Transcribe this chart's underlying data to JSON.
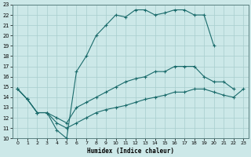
{
  "xlabel": "Humidex (Indice chaleur)",
  "bg_color": "#cce8e8",
  "grid_color": "#a8cece",
  "line_color": "#1a6b6b",
  "xlim": [
    -0.5,
    23.5
  ],
  "ylim": [
    10,
    23
  ],
  "xticks": [
    0,
    1,
    2,
    3,
    4,
    5,
    6,
    7,
    8,
    9,
    10,
    11,
    12,
    13,
    14,
    15,
    16,
    17,
    18,
    19,
    20,
    21,
    22,
    23
  ],
  "yticks": [
    10,
    11,
    12,
    13,
    14,
    15,
    16,
    17,
    18,
    19,
    20,
    21,
    22,
    23
  ],
  "line1_x": [
    0,
    1,
    2,
    3,
    4,
    5,
    6,
    7,
    8,
    9,
    10,
    11,
    12,
    13,
    14,
    15,
    16,
    17,
    18,
    19,
    20
  ],
  "line1_y": [
    14.8,
    13.8,
    12.5,
    12.5,
    10.8,
    10.0,
    16.5,
    18.0,
    20.0,
    21.0,
    22.0,
    21.8,
    22.5,
    22.5,
    22.0,
    22.2,
    22.5,
    22.5,
    22.0,
    22.0,
    19.0
  ],
  "line2_x": [
    0,
    1,
    2,
    3,
    4,
    5,
    6,
    7,
    8,
    9,
    10,
    11,
    12,
    13,
    14,
    15,
    16,
    17,
    18,
    19,
    20,
    21,
    22
  ],
  "line2_y": [
    14.8,
    13.8,
    12.5,
    12.5,
    12.0,
    11.5,
    13.0,
    13.5,
    14.0,
    14.5,
    15.0,
    15.5,
    15.8,
    16.0,
    16.5,
    16.5,
    17.0,
    17.0,
    17.0,
    16.0,
    15.5,
    15.5,
    14.8
  ],
  "line3_x": [
    0,
    1,
    2,
    3,
    4,
    5,
    6,
    7,
    8,
    9,
    10,
    11,
    12,
    13,
    14,
    15,
    16,
    17,
    18,
    19,
    20,
    21,
    22,
    23
  ],
  "line3_y": [
    14.8,
    13.8,
    12.5,
    12.5,
    11.5,
    11.0,
    11.5,
    12.0,
    12.5,
    12.8,
    13.0,
    13.2,
    13.5,
    13.8,
    14.0,
    14.2,
    14.5,
    14.5,
    14.8,
    14.8,
    14.5,
    14.2,
    14.0,
    14.8
  ]
}
